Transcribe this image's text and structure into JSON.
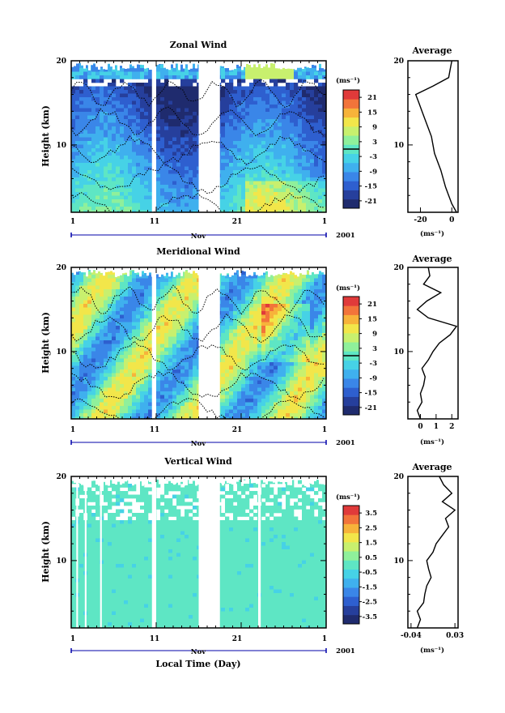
{
  "figure": {
    "month_label": "Nov",
    "year_label": "2001",
    "x_axis_label": "Local Time (Day)",
    "average_title": "Average",
    "unit_label": "(ms⁻¹)"
  },
  "colormap": [
    "#1f2b6e",
    "#263f9c",
    "#2e5fcf",
    "#3a86e8",
    "#3fb0ee",
    "#46d2e6",
    "#5ee6c4",
    "#8ff09b",
    "#c8f06e",
    "#f2e64a",
    "#f7b33a",
    "#f2743a",
    "#e03a3a"
  ],
  "chart_data": [
    {
      "type": "heatmap",
      "title": "Zonal Wind",
      "ylabel": "Height (km)",
      "x_ticks": [
        "1",
        "11",
        "21",
        "1"
      ],
      "x_day_range": [
        1,
        31
      ],
      "ylim": [
        2,
        20
      ],
      "y_ticks": [
        "10",
        "20"
      ],
      "data_gaps_day": [
        [
          10.5,
          11.0
        ],
        [
          16.0,
          18.5
        ]
      ],
      "colorbar_ticks": [
        "21",
        "15",
        "9",
        "3",
        "-3",
        "-9",
        "-15",
        "-21"
      ],
      "colorbar_range": [
        -24,
        24
      ],
      "colorbar_zero_line": true,
      "profile": {
        "title": "Average",
        "x_ticks": [
          "-20",
          "0"
        ],
        "xlim": [
          -28,
          4
        ],
        "heights": [
          2,
          3,
          4,
          5,
          6,
          7,
          8,
          9,
          10,
          11,
          12,
          13,
          14,
          15,
          16,
          17,
          18,
          19,
          20
        ],
        "values": [
          3,
          0,
          -2,
          -4,
          -5.5,
          -7,
          -9,
          -11,
          -12,
          -13,
          -15,
          -17,
          -19,
          -21,
          -23,
          -12,
          -2,
          -1,
          0
        ]
      }
    },
    {
      "type": "heatmap",
      "title": "Meridional Wind",
      "ylabel": "Height (km)",
      "x_ticks": [
        "1",
        "11",
        "21",
        "1"
      ],
      "x_day_range": [
        1,
        31
      ],
      "ylim": [
        2,
        20
      ],
      "y_ticks": [
        "10",
        "20"
      ],
      "data_gaps_day": [
        [
          10.5,
          11.0
        ],
        [
          16.0,
          18.5
        ]
      ],
      "colorbar_ticks": [
        "21",
        "15",
        "9",
        "3",
        "-3",
        "-9",
        "-15",
        "-21"
      ],
      "colorbar_range": [
        -24,
        24
      ],
      "colorbar_zero_line": true,
      "profile": {
        "title": "Average",
        "x_ticks": [
          "0",
          "1",
          "2"
        ],
        "xlim": [
          -0.8,
          2.4
        ],
        "heights": [
          2,
          3,
          4,
          5,
          6,
          7,
          8,
          9,
          10,
          11,
          12,
          13,
          14,
          15,
          16,
          17,
          18,
          19,
          20
        ],
        "values": [
          0,
          -0.2,
          0.1,
          0,
          0.2,
          0.3,
          0.1,
          0.5,
          0.8,
          1.2,
          1.9,
          2.3,
          0.5,
          -0.2,
          0.4,
          1.3,
          0.2,
          0.6,
          0.5
        ]
      }
    },
    {
      "type": "heatmap",
      "title": "Vertical Wind",
      "ylabel": "Height (km)",
      "x_ticks": [
        "1",
        "11",
        "21",
        "1"
      ],
      "x_day_range": [
        1,
        31
      ],
      "ylim": [
        2,
        20
      ],
      "y_ticks": [
        "10",
        "20"
      ],
      "data_gaps_day": [
        [
          1.6,
          1.8
        ],
        [
          2.6,
          2.8
        ],
        [
          4.4,
          4.6
        ],
        [
          10.5,
          11.0
        ],
        [
          16.0,
          18.5
        ],
        [
          23.0,
          23.3
        ]
      ],
      "colorbar_ticks": [
        "3.5",
        "2.5",
        "1.5",
        "0.5",
        "-0.5",
        "-1.5",
        "-2.5",
        "-3.5"
      ],
      "colorbar_range": [
        -4,
        4
      ],
      "colorbar_zero_line": false,
      "profile": {
        "title": "Average",
        "x_ticks": [
          "-0.04",
          "0.03"
        ],
        "xlim": [
          -0.045,
          0.035
        ],
        "heights": [
          2,
          3,
          4,
          5,
          6,
          7,
          8,
          9,
          10,
          11,
          12,
          13,
          14,
          15,
          16,
          17,
          18,
          19,
          20
        ],
        "values": [
          -0.03,
          -0.025,
          -0.03,
          -0.02,
          -0.018,
          -0.015,
          -0.008,
          -0.012,
          -0.015,
          -0.005,
          0.0,
          0.01,
          0.02,
          0.015,
          0.03,
          0.01,
          0.025,
          0.012,
          0.005
        ]
      }
    }
  ]
}
